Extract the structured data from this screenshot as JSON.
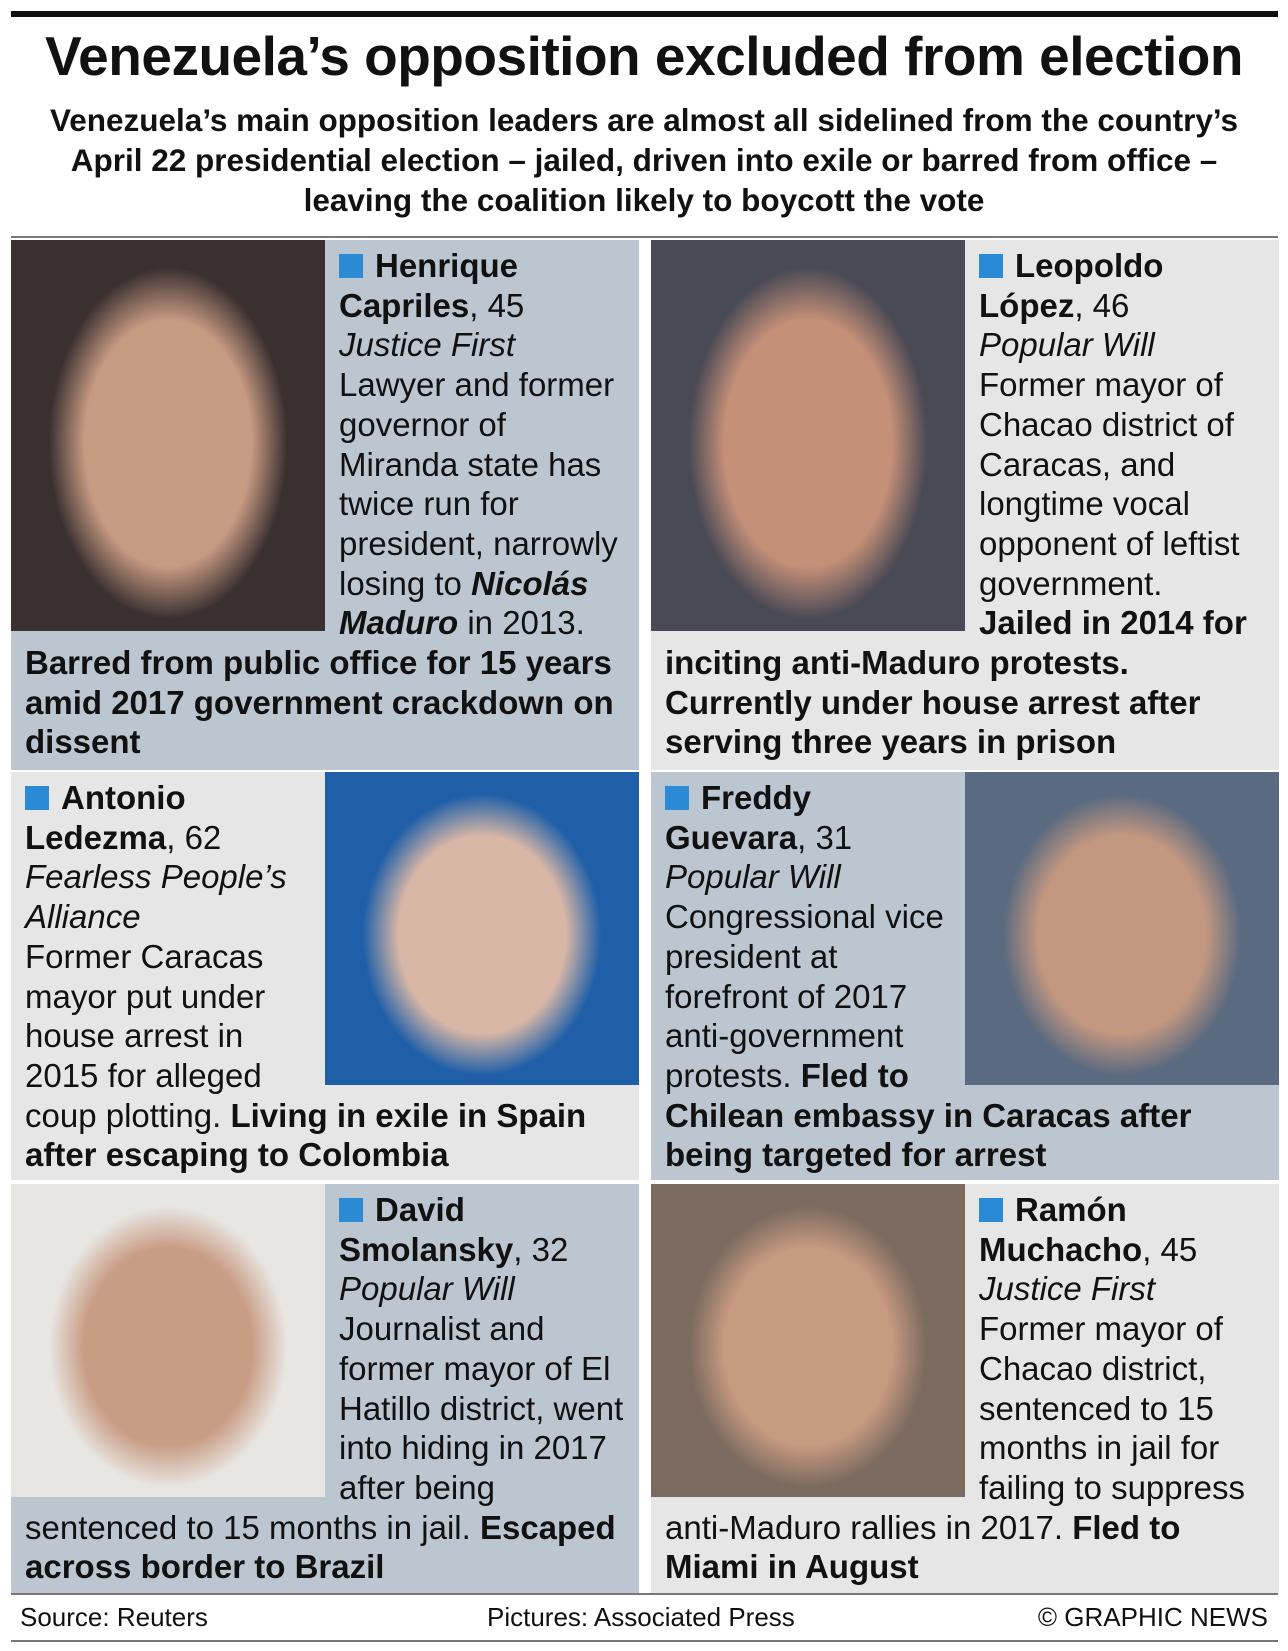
{
  "header": {
    "title": "Venezuela’s opposition excluded from election",
    "subtitle": "Venezuela’s main opposition leaders are almost all sidelined from the country’s April 22 presidential election – jailed, driven into exile or barred from office – leaving the coalition likely to boycott the vote"
  },
  "profiles": [
    {
      "first": "Henrique",
      "last": "Capriles",
      "age": 45,
      "party": "Justice First",
      "photo": "left",
      "bg": "#bcc6d1",
      "text": [
        {
          "t": "Lawyer and former governor of Miranda state has twice run for president, narrowly losing to ",
          "s": "plain"
        },
        {
          "t": "Nicolás Maduro",
          "s": "bold-italic"
        },
        {
          "t": " in 2013. ",
          "s": "plain"
        },
        {
          "t": "Barred from public office for 15 years amid 2017 government crackdown on dissent",
          "s": "bold"
        }
      ]
    },
    {
      "first": "Leopoldo",
      "last": "López",
      "age": 46,
      "party": "Popular Will",
      "photo": "left",
      "bg": "#e6e6e6",
      "text": [
        {
          "t": "Former mayor of Chacao district of Caracas, and longtime vocal opponent of leftist government. ",
          "s": "plain"
        },
        {
          "t": "Jailed in 2014 for inciting anti-Maduro protests. Currently under house arrest after serving three years in prison",
          "s": "bold"
        }
      ]
    },
    {
      "first": "Antonio",
      "last": "Ledezma",
      "age": 62,
      "party": "Fearless People’s Alliance",
      "photo": "right",
      "bg": "#e6e6e6",
      "text": [
        {
          "t": "Former Caracas mayor put under house arrest in 2015 for alleged coup plotting. ",
          "s": "plain"
        },
        {
          "t": "Living in exile in Spain after escaping to Colombia",
          "s": "bold"
        }
      ]
    },
    {
      "first": "Freddy",
      "last": "Guevara",
      "age": 31,
      "party": "Popular Will",
      "photo": "right",
      "bg": "#bcc6d1",
      "text": [
        {
          "t": "Congressional vice president at forefront of 2017 anti-government protests. ",
          "s": "plain"
        },
        {
          "t": "Fled to Chilean embassy in Caracas after being targeted for arrest",
          "s": "bold"
        }
      ]
    },
    {
      "first": "David",
      "last": "Smolansky",
      "age": 32,
      "party": "Popular Will",
      "photo": "left",
      "bg": "#bcc6d1",
      "text": [
        {
          "t": "Journalist and former mayor of El Hatillo district, went into hiding in 2017 after being sentenced to 15 months in jail. ",
          "s": "plain"
        },
        {
          "t": "Escaped across border to Brazil",
          "s": "bold"
        }
      ]
    },
    {
      "first": "Ramón",
      "last": "Muchacho",
      "age": 45,
      "party": "Justice First",
      "photo": "left",
      "bg": "#e6e6e6",
      "text": [
        {
          "t": "Former mayor of Chacao district, sentenced to 15 months in jail for failing to suppress anti-Maduro rallies in 2017. ",
          "s": "plain"
        },
        {
          "t": "Fled to Miami in August",
          "s": "bold"
        }
      ]
    }
  ],
  "footer": {
    "source": "Source: Reuters",
    "pictures": "Pictures: Associated Press",
    "credit": "© GRAPHIC NEWS"
  }
}
